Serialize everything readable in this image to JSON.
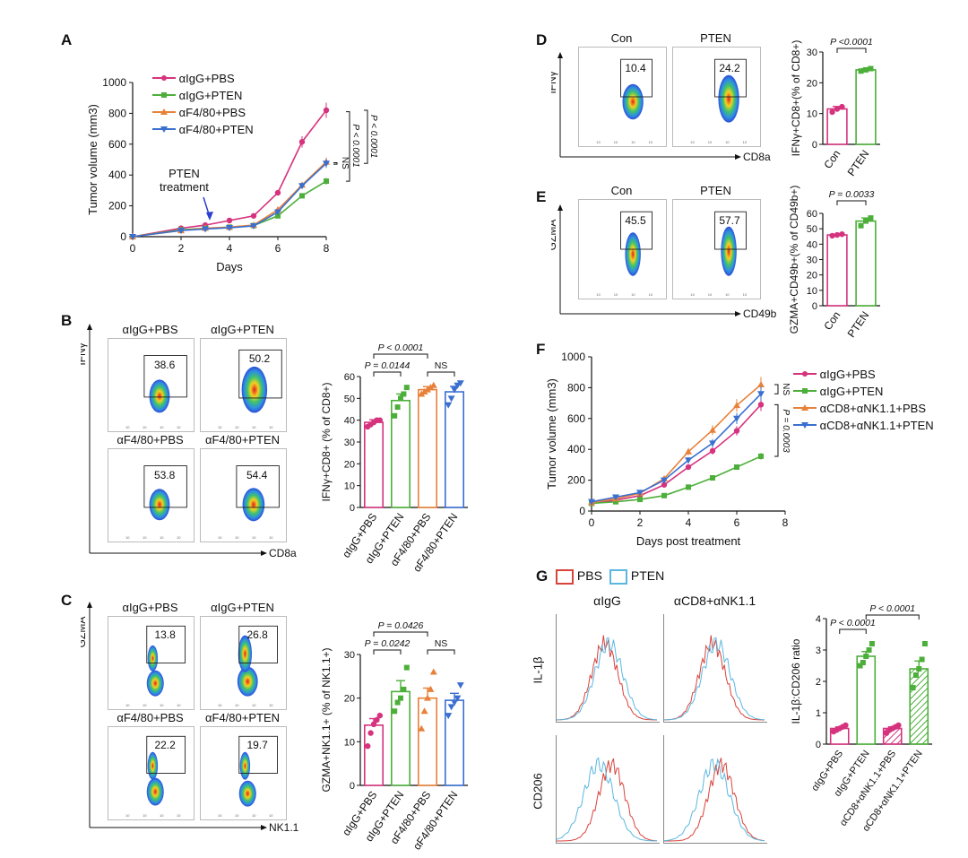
{
  "panels": {
    "A": {
      "label": "A"
    },
    "B": {
      "label": "B",
      "y_axis": "IFNγ",
      "x_axis": "CD8a",
      "plots": [
        {
          "title": "αIgG+PBS",
          "value": "38.6"
        },
        {
          "title": "αIgG+PTEN",
          "value": "50.2"
        },
        {
          "title": "αF4/80+PBS",
          "value": "53.8"
        },
        {
          "title": "αF4/80+PTEN",
          "value": "54.4"
        }
      ]
    },
    "C": {
      "label": "C",
      "y_axis": "GZMA",
      "x_axis": "NK1.1",
      "plots": [
        {
          "title": "αIgG+PBS",
          "value": "13.8"
        },
        {
          "title": "αIgG+PTEN",
          "value": "26.8"
        },
        {
          "title": "αF4/80+PBS",
          "value": "22.2"
        },
        {
          "title": "αF4/80+PTEN",
          "value": "19.7"
        }
      ]
    },
    "D": {
      "label": "D",
      "y_axis": "IFNγ",
      "x_axis": "CD8a",
      "plots": [
        {
          "title": "Con",
          "value": "10.4"
        },
        {
          "title": "PTEN",
          "value": "24.2"
        }
      ]
    },
    "E": {
      "label": "E",
      "y_axis": "GZMA",
      "x_axis": "CD49b",
      "plots": [
        {
          "title": "Con",
          "value": "45.5"
        },
        {
          "title": "PTEN",
          "value": "57.7"
        }
      ]
    },
    "F": {
      "label": "F"
    },
    "G": {
      "label": "G",
      "legend": [
        "PBS",
        "PTEN"
      ],
      "col_titles": [
        "αIgG",
        "αCD8+αNK1.1"
      ],
      "row_labels": [
        "IL-1β",
        "CD206"
      ]
    }
  },
  "colors": {
    "pink": "#d6337e",
    "green": "#4caf3a",
    "orange": "#e8813a",
    "blue": "#3a6fd0",
    "red_line": "#d8433c",
    "cyan_line": "#5bb7e0"
  },
  "chart_data": [
    {
      "id": "A",
      "type": "line",
      "xlabel": "Days",
      "ylabel": "Tumor volume (mm3)",
      "xlim": [
        0,
        8
      ],
      "ylim": [
        0,
        1000
      ],
      "xticks": [
        0,
        2,
        4,
        6,
        8
      ],
      "yticks": [
        0,
        200,
        400,
        600,
        800,
        1000
      ],
      "x": [
        0,
        2,
        3,
        4,
        5,
        6,
        7,
        8
      ],
      "series": [
        {
          "name": "αIgG+PBS",
          "color": "#d6337e",
          "values": [
            0,
            55,
            75,
            105,
            135,
            285,
            615,
            820
          ]
        },
        {
          "name": "αIgG+PTEN",
          "color": "#4caf3a",
          "values": [
            0,
            45,
            55,
            62,
            72,
            135,
            265,
            360
          ]
        },
        {
          "name": "αF4/80+PBS",
          "color": "#e8813a",
          "values": [
            0,
            40,
            55,
            62,
            75,
            175,
            335,
            485
          ]
        },
        {
          "name": "αF4/80+PTEN",
          "color": "#3a6fd0",
          "values": [
            0,
            40,
            50,
            58,
            70,
            160,
            330,
            475
          ]
        }
      ],
      "annotations": [
        "PTEN treatment",
        "NS",
        "P < 0.0001",
        "P < 0.0001"
      ]
    },
    {
      "id": "B",
      "type": "bar",
      "ylabel": "IFNγ+CD8+ (% of CD8+)",
      "ylim": [
        0,
        60
      ],
      "yticks": [
        0,
        10,
        20,
        30,
        40,
        50,
        60
      ],
      "categories": [
        "αIgG+PBS",
        "αIgG+PTEN",
        "αF4/80+PBS",
        "αF4/80+PTEN"
      ],
      "values": [
        39,
        49,
        54,
        53
      ],
      "errors": [
        1.2,
        3,
        1.4,
        2.5
      ],
      "points": [
        [
          37,
          38,
          39,
          40,
          40
        ],
        [
          42,
          46,
          50,
          52,
          55
        ],
        [
          52,
          53,
          54,
          55,
          56
        ],
        [
          47,
          50,
          54,
          56,
          57
        ]
      ],
      "annotations": [
        "P < 0.0001",
        "P = 0.0144",
        "NS"
      ]
    },
    {
      "id": "C",
      "type": "bar",
      "ylabel": "GZMA+NK1.1+ (% of NK1.1+)",
      "ylim": [
        0,
        30
      ],
      "yticks": [
        0,
        10,
        20,
        30
      ],
      "categories": [
        "αIgG+PBS",
        "αIgG+PTEN",
        "αF4/80+PBS",
        "αF4/80+PTEN"
      ],
      "values": [
        13.8,
        21.5,
        20,
        19.5
      ],
      "errors": [
        1.5,
        2.5,
        2.3,
        1.6
      ],
      "points": [
        [
          9,
          12,
          14,
          15,
          16
        ],
        [
          17,
          19,
          20,
          22,
          27
        ],
        [
          13,
          17,
          20,
          22,
          26
        ],
        [
          16,
          18,
          19,
          20,
          23
        ]
      ],
      "annotations": [
        "P = 0.0426",
        "P = 0.0242",
        "NS"
      ]
    },
    {
      "id": "D",
      "type": "bar",
      "ylabel": "IFNγ+CD8+(% of CD8+)",
      "ylim": [
        0,
        30
      ],
      "yticks": [
        0,
        10,
        20,
        30
      ],
      "categories": [
        "Con",
        "PTEN"
      ],
      "values": [
        11.5,
        24.2
      ],
      "errors": [
        0.8,
        0.4
      ],
      "points": [
        [
          10.5,
          11.5,
          12.2
        ],
        [
          23.8,
          24.2,
          24.6
        ]
      ],
      "annotations": [
        "P <0.0001"
      ]
    },
    {
      "id": "E",
      "type": "bar",
      "ylabel": "GZMA+CD49b+(% of CD49b+)",
      "ylim": [
        0,
        60
      ],
      "yticks": [
        0,
        10,
        20,
        30,
        40,
        50,
        60
      ],
      "categories": [
        "Con",
        "PTEN"
      ],
      "values": [
        46,
        55
      ],
      "errors": [
        0.5,
        2
      ],
      "points": [
        [
          45.5,
          46,
          46.5
        ],
        [
          52,
          55,
          57
        ]
      ],
      "annotations": [
        "P = 0.0033"
      ]
    },
    {
      "id": "F",
      "type": "line",
      "xlabel": "Days post treatment",
      "ylabel": "Tumor volume (mm3)",
      "xlim": [
        0,
        8
      ],
      "ylim": [
        0,
        1000
      ],
      "xticks": [
        0,
        2,
        4,
        6,
        8
      ],
      "yticks": [
        0,
        200,
        400,
        600,
        800,
        1000
      ],
      "x": [
        0,
        1,
        2,
        3,
        4,
        5,
        6,
        7
      ],
      "series": [
        {
          "name": "αIgG+PBS",
          "color": "#d6337e",
          "values": [
            50,
            70,
            100,
            170,
            285,
            390,
            520,
            690
          ]
        },
        {
          "name": "αIgG+PTEN",
          "color": "#4caf3a",
          "values": [
            50,
            60,
            75,
            100,
            155,
            215,
            285,
            355
          ]
        },
        {
          "name": "αCD8+αNK1.1+PBS",
          "color": "#e8813a",
          "values": [
            55,
            80,
            115,
            210,
            385,
            525,
            685,
            820
          ]
        },
        {
          "name": "αCD8+αNK1.1+PTEN",
          "color": "#3a6fd0",
          "values": [
            60,
            90,
            120,
            200,
            330,
            440,
            600,
            760
          ]
        }
      ],
      "annotations": [
        "NS",
        "P = 0.0003"
      ]
    },
    {
      "id": "G",
      "type": "bar",
      "ylabel": "IL-1β:CD206 ratio",
      "ylim": [
        0,
        4
      ],
      "yticks": [
        0,
        1,
        2,
        3,
        4
      ],
      "categories": [
        "αIgG+PBS",
        "αIgG+PTEN",
        "αCD8+αNK1.1+PBS",
        "αCD8+αNK1.1+PTEN"
      ],
      "values": [
        0.5,
        2.8,
        0.5,
        2.4
      ],
      "errors": [
        0.05,
        0.15,
        0.05,
        0.25
      ],
      "points": [
        [
          0.4,
          0.45,
          0.5,
          0.55,
          0.6
        ],
        [
          2.5,
          2.6,
          2.8,
          3.0,
          3.2
        ],
        [
          0.35,
          0.45,
          0.5,
          0.55,
          0.6
        ],
        [
          1.8,
          2.2,
          2.4,
          2.7,
          3.2
        ]
      ],
      "annotations": [
        "P < 0.0001",
        "P < 0.0001"
      ]
    }
  ]
}
